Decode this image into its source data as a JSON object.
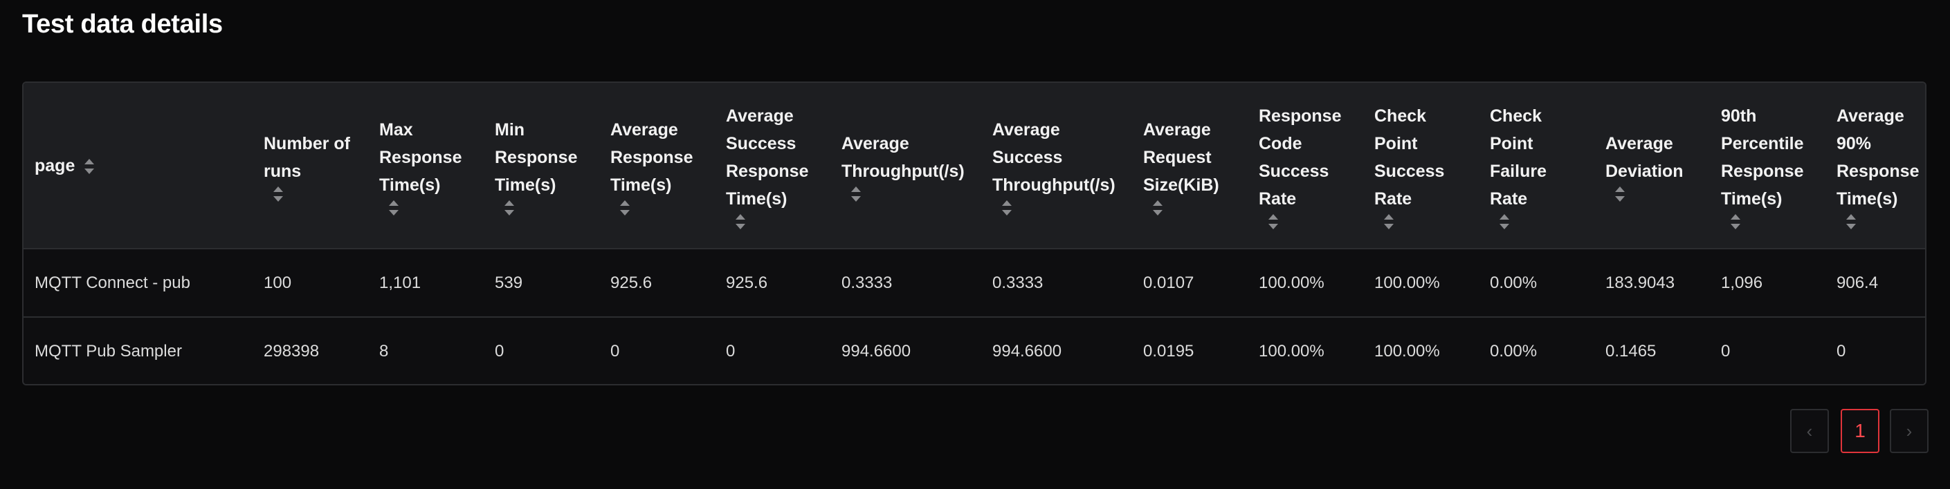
{
  "page_title": "Test data details",
  "table": {
    "columns": [
      {
        "lines": [
          "page"
        ],
        "sorter_inline": true
      },
      {
        "lines": [
          "Number of",
          "runs"
        ]
      },
      {
        "lines": [
          "Max",
          "Response",
          "Time(s)"
        ]
      },
      {
        "lines": [
          "Min",
          "Response",
          "Time(s)"
        ]
      },
      {
        "lines": [
          "Average",
          "Response",
          "Time(s)"
        ]
      },
      {
        "lines": [
          "Average",
          "Success",
          "Response",
          "Time(s)"
        ]
      },
      {
        "lines": [
          "Average",
          "Throughput(/s)"
        ]
      },
      {
        "lines": [
          "Average",
          "Success",
          "Throughput(/s)"
        ]
      },
      {
        "lines": [
          "Average",
          "Request",
          "Size(KiB)"
        ]
      },
      {
        "lines": [
          "Response",
          "Code",
          "Success",
          "Rate"
        ]
      },
      {
        "lines": [
          "Check",
          "Point",
          "Success",
          "Rate"
        ]
      },
      {
        "lines": [
          "Check",
          "Point",
          "Failure",
          "Rate"
        ]
      },
      {
        "lines": [
          "Average",
          "Deviation"
        ]
      },
      {
        "lines": [
          "90th",
          "Percentile",
          "Response",
          "Time(s)"
        ]
      },
      {
        "lines": [
          "Average",
          "90%",
          "Response",
          "Time(s)"
        ]
      }
    ],
    "rows": [
      [
        "MQTT Connect - pub",
        "100",
        "1,101",
        "539",
        "925.6",
        "925.6",
        "0.3333",
        "0.3333",
        "0.0107",
        "100.00%",
        "100.00%",
        "0.00%",
        "183.9043",
        "1,096",
        "906.4"
      ],
      [
        "MQTT Pub Sampler",
        "298398",
        "8",
        "0",
        "0",
        "0",
        "994.6600",
        "994.6600",
        "0.0195",
        "100.00%",
        "100.00%",
        "0.00%",
        "0.1465",
        "0",
        "0"
      ]
    ]
  },
  "pagination": {
    "prev_icon": "‹",
    "current_page": "1",
    "next_icon": "›"
  },
  "colors": {
    "background": "#0a0a0b",
    "header_bg": "#1d1e21",
    "border": "#2c2d30",
    "accent": "#e0343a"
  }
}
